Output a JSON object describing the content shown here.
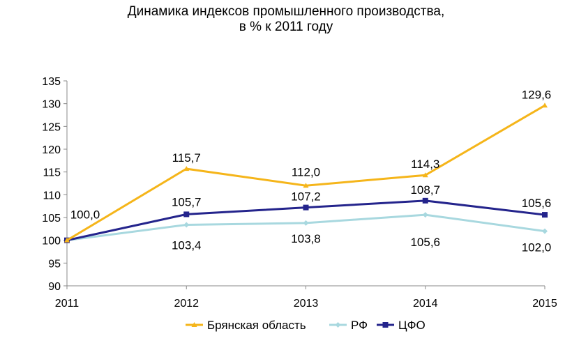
{
  "chart_data": {
    "type": "line",
    "title_line1": "Динамика индексов промышленного производства,",
    "title_line2": "в % к 2011 году",
    "xlabel": "",
    "ylabel": "",
    "categories": [
      "2011",
      "2012",
      "2013",
      "2014",
      "2015"
    ],
    "ylim": [
      90,
      135
    ],
    "yticks": [
      90,
      95,
      100,
      105,
      110,
      115,
      120,
      125,
      130,
      135
    ],
    "grid": false,
    "legend_position": "bottom",
    "series": [
      {
        "name": "Брянская область",
        "values": [
          100.0,
          115.7,
          112.0,
          114.3,
          129.6
        ],
        "labels": [
          "100,0",
          "115,7",
          "112,0",
          "114,3",
          "129,6"
        ],
        "color": "#F5B51A",
        "marker": "triangle"
      },
      {
        "name": "РФ",
        "values": [
          100.0,
          103.4,
          103.8,
          105.6,
          102.0
        ],
        "labels": [
          "",
          "103,4",
          "103,8",
          "105,6",
          "102,0"
        ],
        "color": "#A8D8DF",
        "marker": "diamond"
      },
      {
        "name": "ЦФО",
        "values": [
          100.0,
          105.7,
          107.2,
          108.7,
          105.6
        ],
        "labels": [
          "",
          "105,7",
          "107,2",
          "108,7",
          "105,6"
        ],
        "color": "#24248C",
        "marker": "square"
      }
    ]
  }
}
